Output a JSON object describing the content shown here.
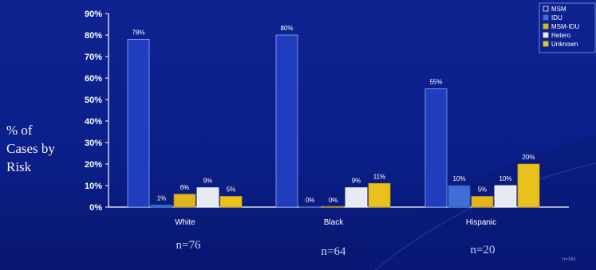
{
  "chart_data": {
    "type": "bar",
    "title": "",
    "ylabel_lines": [
      "% of",
      "Cases by",
      "Risk"
    ],
    "categories": [
      "White",
      "Black",
      "Hispanic"
    ],
    "category_counts": [
      "n=76",
      "n=64",
      "n=20"
    ],
    "series": [
      {
        "name": "MSM",
        "values": [
          78,
          80,
          55
        ],
        "labels": [
          "78%",
          "80%",
          "55%"
        ],
        "color": "#1f3dbc"
      },
      {
        "name": "IDU",
        "values": [
          1,
          0,
          10
        ],
        "labels": [
          "1%",
          "0%",
          "10%"
        ],
        "color": "#3f6fd6"
      },
      {
        "name": "MSM-IDU",
        "values": [
          6,
          0,
          5
        ],
        "labels": [
          "6%",
          "0%",
          "5%"
        ],
        "color": "#e3b51c"
      },
      {
        "name": "Hetero",
        "values": [
          9,
          9,
          10
        ],
        "labels": [
          "9%",
          "9%",
          "10%"
        ],
        "color": "#e6ebf2"
      },
      {
        "name": "Unknown",
        "values": [
          5,
          11,
          20
        ],
        "labels": [
          "5%",
          "11%",
          "20%"
        ],
        "color": "#e8c11c"
      }
    ],
    "ylim": [
      0,
      90
    ],
    "yticks": [
      "0%",
      "10%",
      "20%",
      "30%",
      "40%",
      "50%",
      "60%",
      "70%",
      "80%",
      "90%"
    ],
    "legend_position": "top-right",
    "footnote": "n=161"
  },
  "colors": {
    "background": "#0b1c86",
    "axis": "#ffffff"
  }
}
